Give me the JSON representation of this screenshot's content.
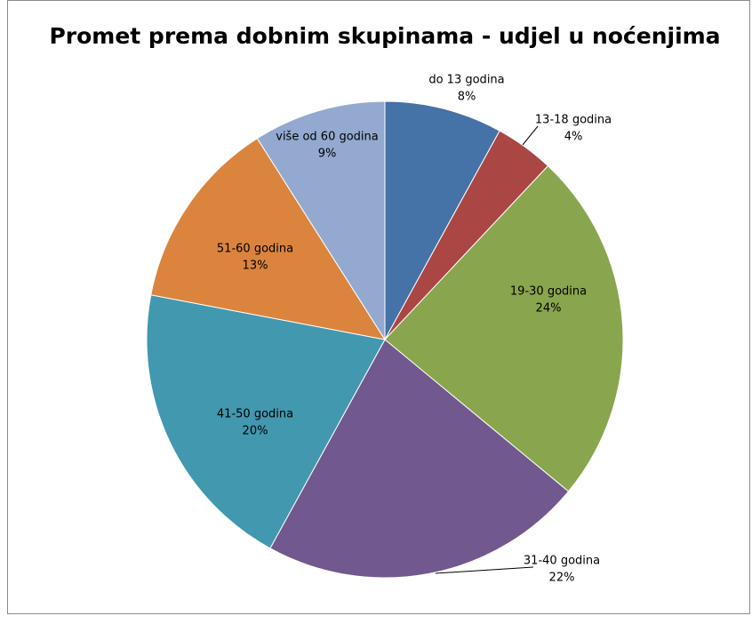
{
  "chart_data": {
    "type": "pie",
    "title": "Promet prema dobnim skupinama - udjel u noćenjima",
    "categories": [
      "do 13 godina",
      "13-18 godina",
      "19-30 godina",
      "31-40 godina",
      "41-50 godina",
      "51-60 godina",
      "više od 60 godina"
    ],
    "values": [
      8,
      4,
      24,
      22,
      20,
      13,
      9
    ],
    "value_labels": [
      "8%",
      "4%",
      "24%",
      "22%",
      "20%",
      "13%",
      "9%"
    ],
    "colors": [
      "#4572a7",
      "#aa4643",
      "#89a54e",
      "#71588f",
      "#4198af",
      "#db843d",
      "#93a9cf"
    ]
  }
}
